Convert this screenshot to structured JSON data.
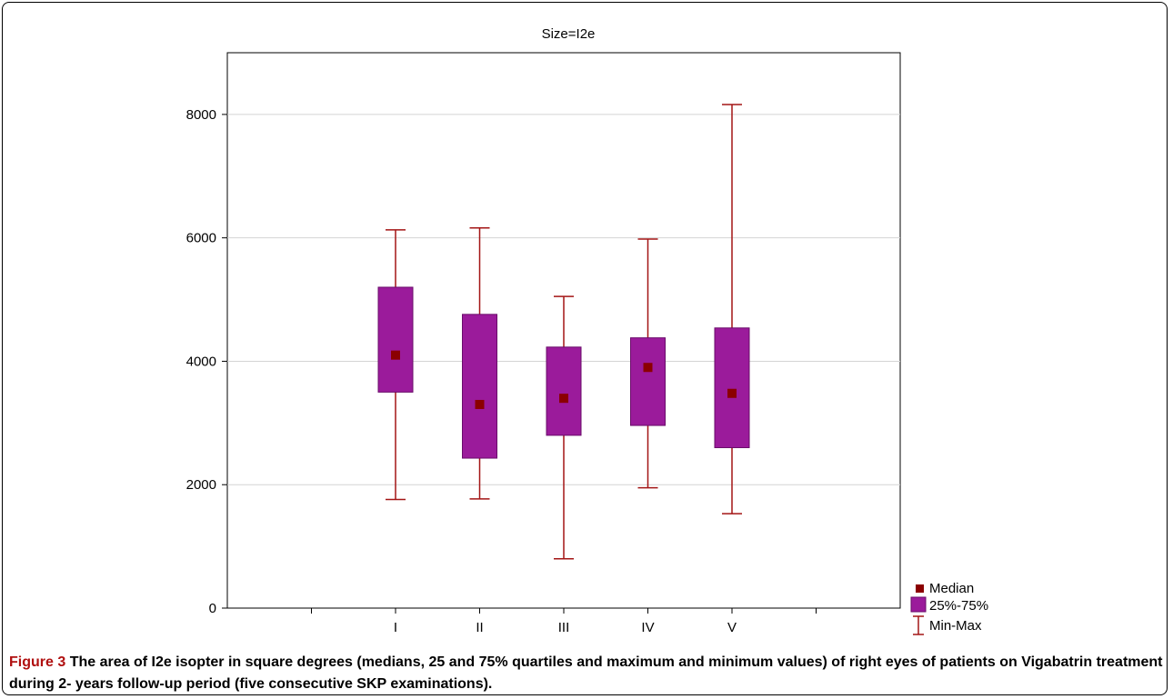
{
  "chart_data": {
    "type": "box",
    "title": "Size=I2e",
    "xlabel": "",
    "ylabel": "",
    "categories": [
      "I",
      "II",
      "III",
      "IV",
      "V"
    ],
    "ylim": [
      0,
      9000
    ],
    "yticks": [
      0,
      2000,
      4000,
      6000,
      8000
    ],
    "grid": "horizontal",
    "legend_position": "bottom-right",
    "series": [
      {
        "name": "Median",
        "values": [
          4100,
          3300,
          3400,
          3900,
          3480
        ]
      },
      {
        "name": "25%-75%",
        "values": [
          [
            3500,
            5200
          ],
          [
            2430,
            4760
          ],
          [
            2800,
            4230
          ],
          [
            2960,
            4380
          ],
          [
            2600,
            4540
          ]
        ]
      },
      {
        "name": "Min-Max",
        "values": [
          [
            1760,
            6130
          ],
          [
            1770,
            6160
          ],
          [
            800,
            5050
          ],
          [
            1950,
            5980
          ],
          [
            1530,
            8160
          ]
        ]
      }
    ],
    "colors": {
      "box_fill": "#9b1b9b",
      "box_border": "#6a0c6a",
      "whisker": "#a31515",
      "median": "#8b0000",
      "grid": "#d4d4d4"
    }
  },
  "caption": {
    "label": "Figure 3",
    "text": "The area of I2e isopter in square degrees (medians, 25 and 75% quartiles and maximum and minimum values) of right eyes of patients on Vigabatrin treatment during 2- years follow-up period (five consecutive SKP examinations)."
  }
}
